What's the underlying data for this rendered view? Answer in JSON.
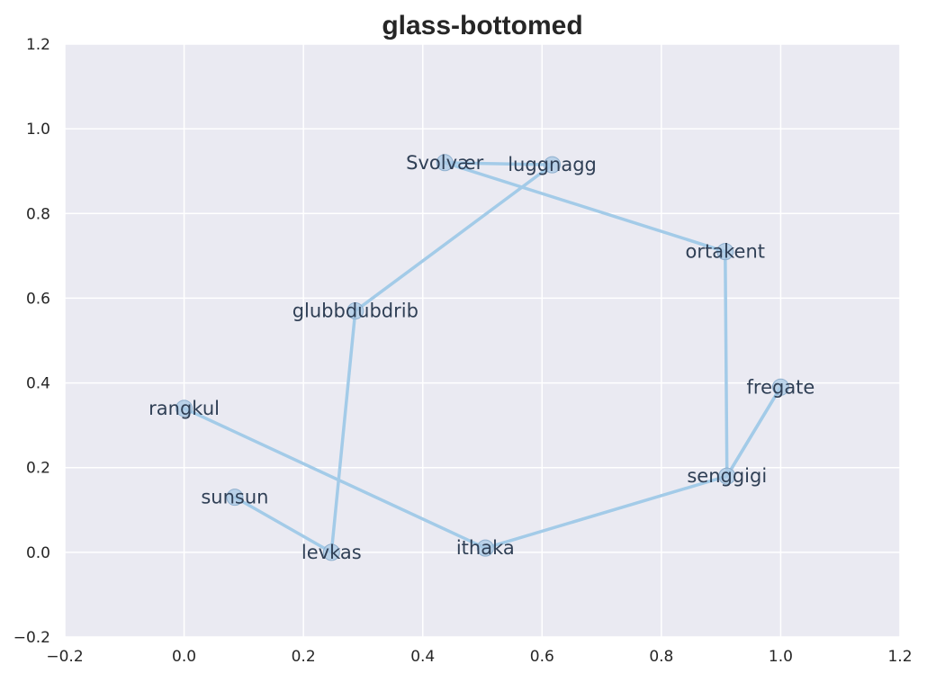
{
  "chart_data": {
    "type": "line",
    "title": "glass-bottomed",
    "xlabel": "",
    "ylabel": "",
    "xlim": [
      -0.2,
      1.2
    ],
    "ylim": [
      -0.2,
      1.2
    ],
    "xticks": [
      "−0.2",
      "0.0",
      "0.2",
      "0.4",
      "0.6",
      "0.8",
      "1.0",
      "1.2"
    ],
    "yticks": [
      "−0.2",
      "0.0",
      "0.2",
      "0.4",
      "0.6",
      "0.8",
      "1.0",
      "1.2"
    ],
    "xtick_values": [
      -0.2,
      0.0,
      0.2,
      0.4,
      0.6,
      0.8,
      1.0,
      1.2
    ],
    "ytick_values": [
      -0.2,
      0.0,
      0.2,
      0.4,
      0.6,
      0.8,
      1.0,
      1.2
    ],
    "grid": true,
    "points": [
      {
        "label": "sunsun",
        "x": 0.085,
        "y": 0.13
      },
      {
        "label": "levkas",
        "x": 0.247,
        "y": 0.0
      },
      {
        "label": "glubbdubdrib",
        "x": 0.287,
        "y": 0.57
      },
      {
        "label": "luggnagg",
        "x": 0.617,
        "y": 0.915
      },
      {
        "label": "Svolvær",
        "x": 0.437,
        "y": 0.92
      },
      {
        "label": "ortakent",
        "x": 0.907,
        "y": 0.71
      },
      {
        "label": "senggigi",
        "x": 0.91,
        "y": 0.18
      },
      {
        "label": "fregate",
        "x": 1.0,
        "y": 0.39
      },
      {
        "label": "ithaka",
        "x": 0.505,
        "y": 0.01
      },
      {
        "label": "rangkul",
        "x": 0.0,
        "y": 0.34
      }
    ],
    "path_order": [
      "sunsun",
      "levkas",
      "glubbdubdrib",
      "luggnagg",
      "Svolvær",
      "ortakent",
      "senggigi",
      "fregate",
      "senggigi",
      "ithaka",
      "rangkul"
    ],
    "colors": {
      "background": "#eaeaf2",
      "grid": "#ffffff",
      "line": "#a3cbe8",
      "marker": "#a8c8e4"
    }
  }
}
